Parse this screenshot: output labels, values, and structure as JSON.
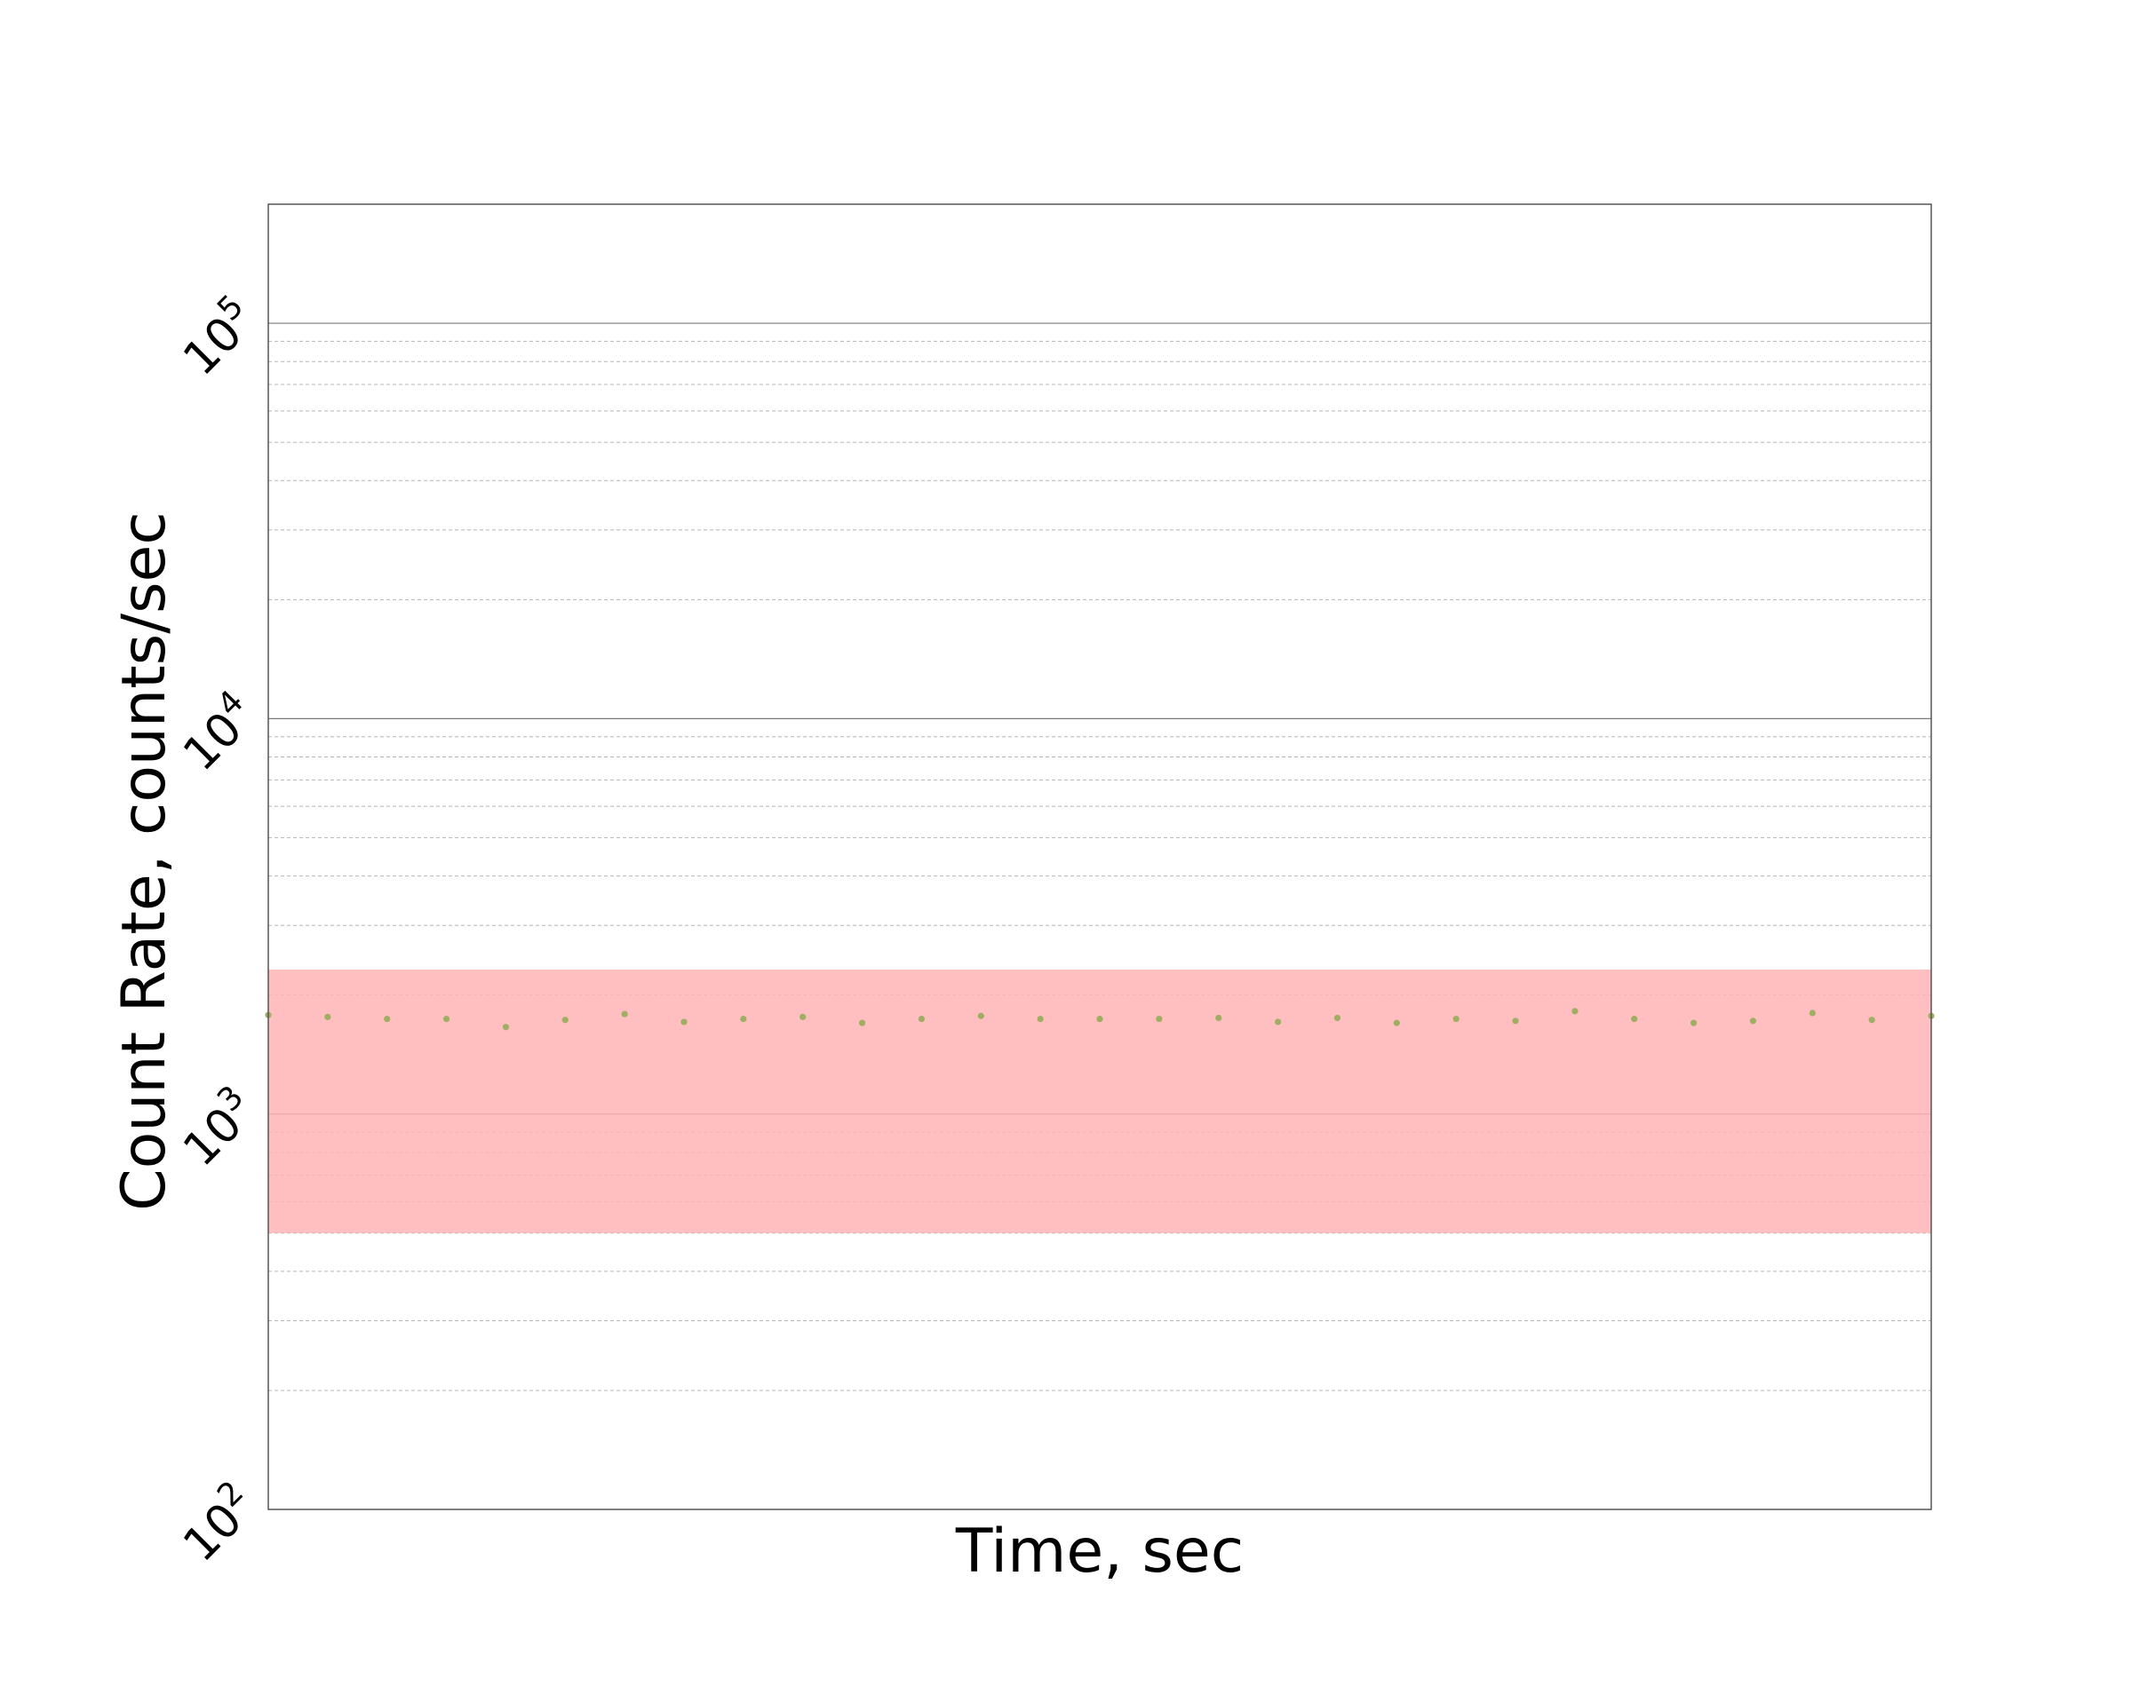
{
  "chart_data": {
    "type": "scatter",
    "title": "",
    "xlabel": "Time, sec",
    "ylabel": "Count Rate, counts/sec",
    "yscale": "log",
    "ylim": [
      100,
      200000
    ],
    "xlim": [
      0,
      28
    ],
    "yticks": [
      {
        "value": 100,
        "base": "10",
        "exp": "2"
      },
      {
        "value": 1000,
        "base": "10",
        "exp": "3"
      },
      {
        "value": 10000,
        "base": "10",
        "exp": "4"
      },
      {
        "value": 100000,
        "base": "10",
        "exp": "5"
      }
    ],
    "xticks_visible": false,
    "grid": {
      "major": true,
      "minor": true,
      "axis": "y"
    },
    "band": {
      "y_low": 500,
      "y_high": 2320,
      "color": "#ffb3b5"
    },
    "series": [
      {
        "color": "#9fae62",
        "x": [
          0,
          1,
          2,
          3,
          4,
          5,
          6,
          7,
          8,
          9,
          10,
          11,
          12,
          13,
          14,
          15,
          16,
          17,
          18,
          19,
          20,
          21,
          22,
          23,
          24,
          25,
          26,
          27,
          28
        ],
        "y": [
          1780,
          1760,
          1740,
          1740,
          1660,
          1730,
          1790,
          1710,
          1740,
          1760,
          1700,
          1740,
          1770,
          1740,
          1740,
          1740,
          1750,
          1710,
          1750,
          1700,
          1740,
          1720,
          1820,
          1740,
          1700,
          1720,
          1800,
          1730,
          1770
        ]
      }
    ]
  }
}
